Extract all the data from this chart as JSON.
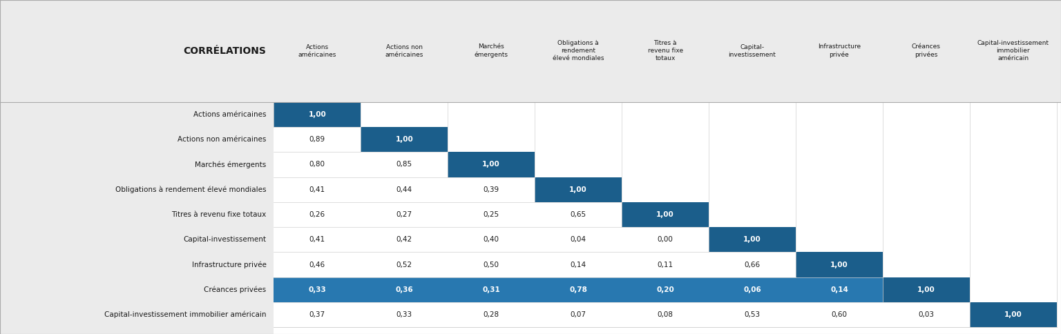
{
  "title": "CORRÉLATIONS",
  "row_labels": [
    "Actions américaines",
    "Actions non américaines",
    "Marchés émergents",
    "Obligations à rendement élevé mondiales",
    "Titres à revenu fixe totaux",
    "Capital-investissement",
    "Infrastructure privée",
    "Créances privées",
    "Capital-investissement immobilier américain"
  ],
  "col_labels": [
    "Actions\naméricaines",
    "Actions non\naméricaines",
    "Marchés\némergents",
    "Obligations à\nrendement\nélevé mondiales",
    "Titres à\nrevenu fixe\ntotaux",
    "Capital-\ninvestissement",
    "Infrastructure\nprivée",
    "Créances\nprivées",
    "Capital-investissement\nimmobilier\naméricain"
  ],
  "matrix": [
    [
      1.0,
      null,
      null,
      null,
      null,
      null,
      null,
      null,
      null
    ],
    [
      0.89,
      1.0,
      null,
      null,
      null,
      null,
      null,
      null,
      null
    ],
    [
      0.8,
      0.85,
      1.0,
      null,
      null,
      null,
      null,
      null,
      null
    ],
    [
      0.41,
      0.44,
      0.39,
      1.0,
      null,
      null,
      null,
      null,
      null
    ],
    [
      0.26,
      0.27,
      0.25,
      0.65,
      1.0,
      null,
      null,
      null,
      null
    ],
    [
      0.41,
      0.42,
      0.4,
      0.04,
      0.0,
      1.0,
      null,
      null,
      null
    ],
    [
      0.46,
      0.52,
      0.5,
      0.14,
      0.11,
      0.66,
      1.0,
      null,
      null
    ],
    [
      0.33,
      0.36,
      0.31,
      0.78,
      0.2,
      0.06,
      0.14,
      1.0,
      null
    ],
    [
      0.37,
      0.33,
      0.28,
      0.07,
      0.08,
      0.53,
      0.6,
      0.03,
      1.0
    ]
  ],
  "diagonal_color": "#1b5e8b",
  "highlight_row": 7,
  "highlight_color": "#2878b0",
  "text_color_dark": "#1a1a1a",
  "text_color_white": "#ffffff",
  "background_color": "#ffffff",
  "header_bg_color": "#ebebeb",
  "cell_color_plain": "#ffffff",
  "grid_line_color": "#d0d0d0",
  "left_panel_bg": "#ebebeb"
}
